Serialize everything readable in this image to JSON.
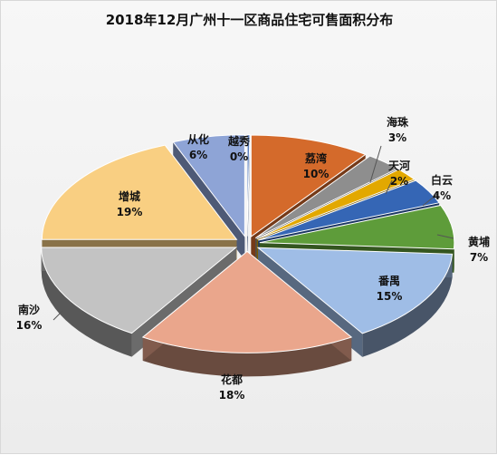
{
  "chart_data": {
    "type": "pie",
    "title": "2018年12月广州十一区商品住宅可售面积分布",
    "categories": [
      "越秀",
      "荔湾",
      "海珠",
      "天河",
      "白云",
      "黄埔",
      "番禺",
      "花都",
      "南沙",
      "增城",
      "从化"
    ],
    "values": [
      0,
      10,
      3,
      2,
      4,
      7,
      15,
      18,
      16,
      19,
      6
    ],
    "value_labels": [
      "0%",
      "10%",
      "3%",
      "2%",
      "4%",
      "7%",
      "15%",
      "18%",
      "16%",
      "19%",
      "6%"
    ],
    "colors": [
      "#5b7fbf",
      "#d46a2b",
      "#8e8e8e",
      "#e2a800",
      "#3566b5",
      "#5e9c3a",
      "#9fbde6",
      "#eaa68c",
      "#c3c3c3",
      "#f9cf82",
      "#8ea4d6"
    ],
    "legend": "none"
  }
}
